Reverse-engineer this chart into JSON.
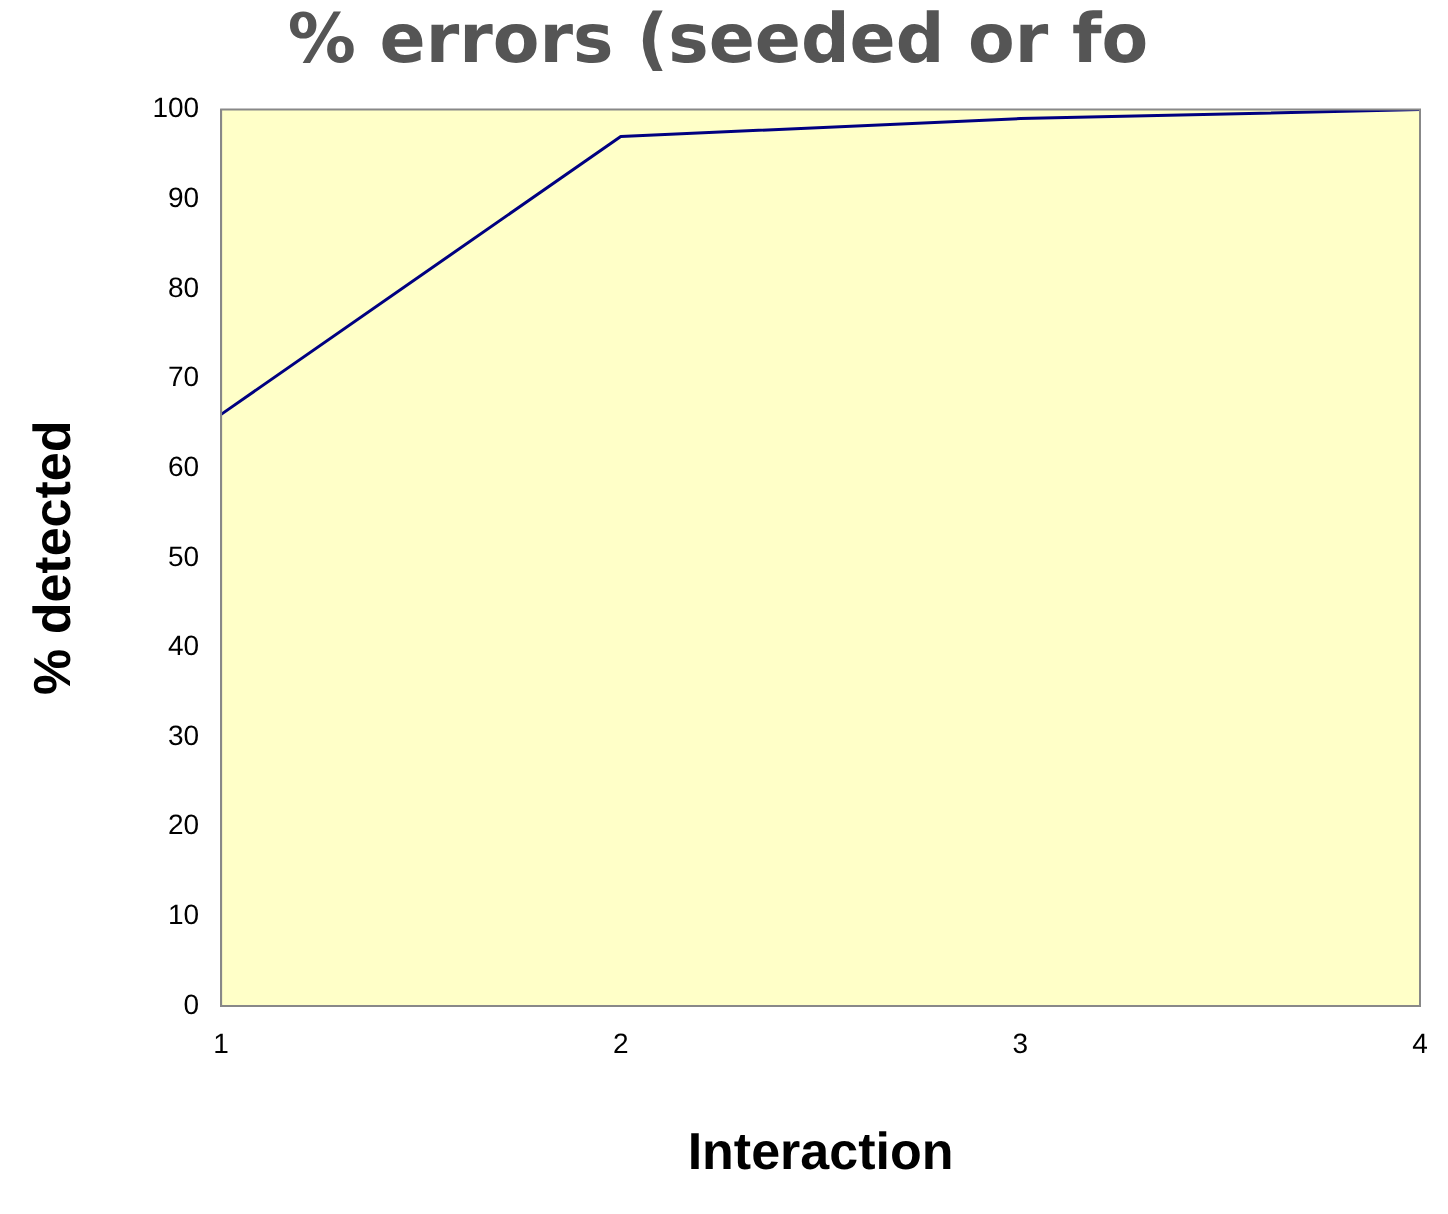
{
  "chart_data": {
    "type": "line",
    "title": "% errors (seeded or fo",
    "xlabel": "Interaction",
    "ylabel": "% detected",
    "x": [
      1,
      2,
      3,
      4
    ],
    "series": [
      {
        "color": "#000080",
        "values": [
          66,
          97,
          99,
          100
        ]
      }
    ],
    "xlim": [
      1,
      4
    ],
    "xticks": [
      1,
      2,
      3,
      4
    ],
    "ylim": [
      0,
      100
    ],
    "yticks": [
      0,
      10,
      20,
      30,
      40,
      50,
      60,
      70,
      80,
      90,
      100
    ],
    "grid": false,
    "legend": false,
    "marker": "none",
    "line_style": "solid"
  }
}
